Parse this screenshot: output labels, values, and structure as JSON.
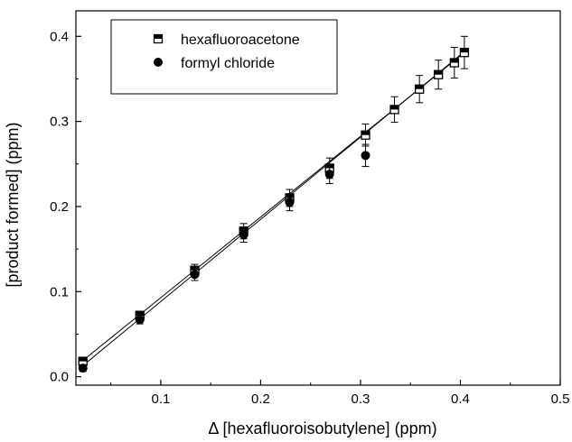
{
  "chart_data": {
    "type": "scatter",
    "xlabel": "Δ [hexafluoroisobutylene] (ppm)",
    "ylabel": "[product formed] (ppm)",
    "xlim": [
      0.015,
      0.5
    ],
    "ylim": [
      -0.01,
      0.43
    ],
    "x_ticks": [
      0.1,
      0.2,
      0.3,
      0.4,
      0.5
    ],
    "x_tick_labels": [
      "0.1",
      "0.2",
      "0.3",
      "0.4",
      "0.5"
    ],
    "y_ticks": [
      0.0,
      0.1,
      0.2,
      0.3,
      0.4
    ],
    "y_tick_labels": [
      "0.0",
      "0.1",
      "0.2",
      "0.3",
      "0.4"
    ],
    "grid": false,
    "legend_placement": "top-left",
    "series": [
      {
        "name": "hexafluoroacetone",
        "marker": "half-filled-square",
        "color": "#000000",
        "x": [
          0.022,
          0.079,
          0.134,
          0.183,
          0.229,
          0.269,
          0.305,
          0.334,
          0.359,
          0.378,
          0.394,
          0.404
        ],
        "y": [
          0.018,
          0.072,
          0.125,
          0.171,
          0.21,
          0.245,
          0.284,
          0.314,
          0.338,
          0.355,
          0.369,
          0.381
        ],
        "err": [
          0.004,
          0.005,
          0.007,
          0.009,
          0.01,
          0.012,
          0.013,
          0.015,
          0.016,
          0.017,
          0.018,
          0.019
        ],
        "fit": [
          [
            0.022,
            0.019
          ],
          [
            0.404,
            0.381
          ]
        ]
      },
      {
        "name": "formyl chloride",
        "marker": "filled-circle",
        "color": "#000000",
        "x": [
          0.022,
          0.079,
          0.134,
          0.183,
          0.229,
          0.269,
          0.305
        ],
        "y": [
          0.01,
          0.067,
          0.12,
          0.167,
          0.205,
          0.238,
          0.26
        ],
        "err": [
          0.004,
          0.005,
          0.007,
          0.009,
          0.01,
          0.011,
          0.013
        ],
        "fit": [
          [
            0.022,
            0.013
          ],
          [
            0.404,
            0.382
          ]
        ]
      }
    ]
  }
}
